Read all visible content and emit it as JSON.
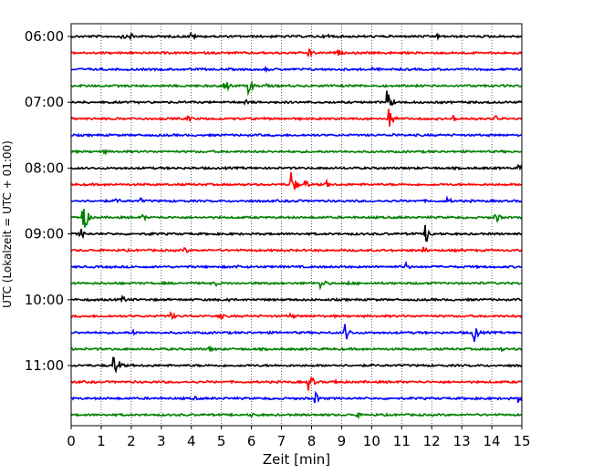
{
  "chart_data": {
    "type": "line",
    "chart_kind": "helicorder seismogram",
    "xlabel": "Zeit  [min]",
    "ylabel": "UTC (Lokalzeit = UTC + 01:00)",
    "xlim": [
      0,
      15
    ],
    "x_ticks": [
      0,
      1,
      2,
      3,
      4,
      5,
      6,
      7,
      8,
      9,
      10,
      11,
      12,
      13,
      14,
      15
    ],
    "x_gridlines": "dotted vertical at every minute",
    "trace_colors": [
      "#000000",
      "#ff0000",
      "#0000ff",
      "#008000"
    ],
    "y_tick_labels": [
      {
        "label": "06:00",
        "row": 0
      },
      {
        "label": "07:00",
        "row": 4
      },
      {
        "label": "08:00",
        "row": 8
      },
      {
        "label": "09:00",
        "row": 12
      },
      {
        "label": "10:00",
        "row": 16
      },
      {
        "label": "11:00",
        "row": 20
      }
    ],
    "rows": [
      {
        "start": "06:00",
        "events": [
          {
            "min": 1.7,
            "amp": 0.2
          },
          {
            "min": 2.0,
            "amp": 0.25
          },
          {
            "min": 4.0,
            "amp": 0.25
          },
          {
            "min": 8.6,
            "amp": 0.2
          },
          {
            "min": 12.2,
            "amp": 0.15
          }
        ]
      },
      {
        "start": "06:15",
        "events": [
          {
            "min": 7.9,
            "amp": 0.3
          },
          {
            "min": 8.9,
            "amp": 0.2
          },
          {
            "min": 14.9,
            "amp": 0.2
          }
        ]
      },
      {
        "start": "06:30",
        "events": [
          {
            "min": 6.5,
            "amp": 0.15
          },
          {
            "min": 10.0,
            "amp": 0.15
          }
        ]
      },
      {
        "start": "06:45",
        "events": [
          {
            "min": 5.1,
            "amp": 0.55
          },
          {
            "min": 5.9,
            "amp": 0.55
          },
          {
            "min": 6.5,
            "amp": 0.15
          }
        ]
      },
      {
        "start": "07:00",
        "events": [
          {
            "min": 10.5,
            "amp": 0.8
          },
          {
            "min": 5.8,
            "amp": 0.15
          }
        ]
      },
      {
        "start": "07:15",
        "events": [
          {
            "min": 3.9,
            "amp": 0.25
          },
          {
            "min": 10.6,
            "amp": 0.7
          },
          {
            "min": 12.7,
            "amp": 0.25
          },
          {
            "min": 14.1,
            "amp": 0.25
          }
        ]
      },
      {
        "start": "07:30",
        "events": [
          {
            "min": 10.7,
            "amp": 0.15
          }
        ]
      },
      {
        "start": "07:45",
        "events": [
          {
            "min": 1.1,
            "amp": 0.15
          }
        ]
      },
      {
        "start": "08:00",
        "events": [
          {
            "min": 14.9,
            "amp": 0.2
          }
        ]
      },
      {
        "start": "08:15",
        "events": [
          {
            "min": 7.3,
            "amp": 1.05
          },
          {
            "min": 7.8,
            "amp": 0.3
          },
          {
            "min": 8.5,
            "amp": 0.25
          }
        ]
      },
      {
        "start": "08:30",
        "events": [
          {
            "min": 1.5,
            "amp": 0.25
          },
          {
            "min": 2.3,
            "amp": 0.2
          },
          {
            "min": 7.5,
            "amp": 0.15
          },
          {
            "min": 12.5,
            "amp": 0.3
          }
        ]
      },
      {
        "start": "08:45",
        "events": [
          {
            "min": 0.4,
            "amp": 1.05
          },
          {
            "min": 2.4,
            "amp": 0.2
          },
          {
            "min": 14.1,
            "amp": 0.45
          }
        ]
      },
      {
        "start": "09:00",
        "events": [
          {
            "min": 0.3,
            "amp": 0.4
          },
          {
            "min": 11.8,
            "amp": 0.65
          },
          {
            "min": 2.6,
            "amp": 0.15
          }
        ]
      },
      {
        "start": "09:15",
        "events": [
          {
            "min": 3.8,
            "amp": 0.2
          },
          {
            "min": 11.7,
            "amp": 0.3
          }
        ]
      },
      {
        "start": "09:30",
        "events": [
          {
            "min": 11.1,
            "amp": 0.35
          },
          {
            "min": 5.5,
            "amp": 0.15
          }
        ]
      },
      {
        "start": "09:45",
        "events": [
          {
            "min": 4.8,
            "amp": 0.2
          },
          {
            "min": 8.3,
            "amp": 0.45
          },
          {
            "min": 9.2,
            "amp": 0.15
          }
        ]
      },
      {
        "start": "10:00",
        "events": [
          {
            "min": 1.7,
            "amp": 0.25
          },
          {
            "min": 5.2,
            "amp": 0.2
          }
        ]
      },
      {
        "start": "10:15",
        "events": [
          {
            "min": 3.3,
            "amp": 0.3
          },
          {
            "min": 4.9,
            "amp": 0.35
          },
          {
            "min": 7.3,
            "amp": 0.25
          }
        ]
      },
      {
        "start": "10:30",
        "events": [
          {
            "min": 9.1,
            "amp": 0.65
          },
          {
            "min": 13.4,
            "amp": 0.65
          },
          {
            "min": 2.1,
            "amp": 0.15
          }
        ]
      },
      {
        "start": "10:45",
        "events": [
          {
            "min": 4.6,
            "amp": 0.2
          },
          {
            "min": 14.3,
            "amp": 0.15
          }
        ]
      },
      {
        "start": "11:00",
        "events": [
          {
            "min": 1.4,
            "amp": 0.75
          },
          {
            "min": 1.6,
            "amp": 0.3
          },
          {
            "min": 8.7,
            "amp": 0.15
          }
        ]
      },
      {
        "start": "11:15",
        "events": [
          {
            "min": 7.9,
            "amp": 0.65
          },
          {
            "min": 8.8,
            "amp": 0.2
          }
        ]
      },
      {
        "start": "11:30",
        "events": [
          {
            "min": 8.1,
            "amp": 0.45
          },
          {
            "min": 14.9,
            "amp": 0.3
          },
          {
            "min": 4.1,
            "amp": 0.15
          }
        ]
      },
      {
        "start": "11:45",
        "events": [
          {
            "min": 9.5,
            "amp": 0.2
          },
          {
            "min": 6.0,
            "amp": 0.15
          }
        ]
      }
    ]
  }
}
